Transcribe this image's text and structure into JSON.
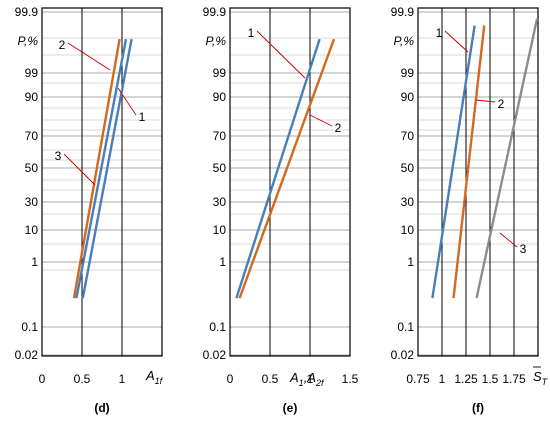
{
  "chart_data": [
    {
      "type": "line",
      "panel_label": "(d)",
      "ylabel": "P,%",
      "xlabel": "A",
      "xlabel_sub": "1f",
      "xlim": [
        0,
        1.5
      ],
      "x_ticks": [
        0,
        0.5,
        1
      ],
      "x_tick_labels": [
        "0",
        "0.5",
        "1"
      ],
      "y_ticks": [
        0.02,
        0.1,
        1,
        10,
        30,
        50,
        70,
        90,
        99,
        99.9
      ],
      "y_tick_labels": [
        "0.02",
        "0.1",
        "1",
        "10",
        "30",
        "50",
        "70",
        "90",
        "99",
        "99.9"
      ],
      "grid": true,
      "series": [
        {
          "name": "1",
          "color": "#4a7eb8",
          "x": [
            0.51,
            1.12
          ],
          "y": [
            0.5,
            99.5
          ]
        },
        {
          "name": "2",
          "color": "#d2691e",
          "x": [
            0.4,
            0.97
          ],
          "y": [
            0.5,
            99.5
          ]
        },
        {
          "name": "3",
          "color": "#4a7eb8",
          "x": [
            0.43,
            1.05
          ],
          "y": [
            0.5,
            99.5
          ]
        }
      ]
    },
    {
      "type": "line",
      "panel_label": "(e)",
      "ylabel": "P,%",
      "xlabel": "A",
      "xlabel_sub1": "1",
      "xlabel_mid": ",A",
      "xlabel_sub2": "2f",
      "xlim": [
        0,
        1.5
      ],
      "x_ticks": [
        0,
        0.5,
        1,
        1.5
      ],
      "x_tick_labels": [
        "0",
        "0.5",
        "1",
        "1.5"
      ],
      "y_ticks": [
        0.02,
        0.1,
        1,
        10,
        30,
        50,
        70,
        90,
        99,
        99.9
      ],
      "y_tick_labels": [
        "0.02",
        "0.1",
        "1",
        "10",
        "30",
        "50",
        "70",
        "90",
        "99",
        "99.9"
      ],
      "grid": true,
      "series": [
        {
          "name": "1",
          "color": "#4a7eb8",
          "x": [
            0.08,
            1.12
          ],
          "y": [
            0.5,
            99.5
          ]
        },
        {
          "name": "2",
          "color": "#d2691e",
          "x": [
            0.12,
            1.3
          ],
          "y": [
            0.5,
            99.5
          ]
        }
      ]
    },
    {
      "type": "line",
      "panel_label": "(f)",
      "ylabel": "P,%",
      "xlabel": "S",
      "xlabel_sub": "T",
      "xlim": [
        0.75,
        2
      ],
      "x_ticks": [
        0.75,
        1,
        1.25,
        1.5,
        1.75
      ],
      "x_tick_labels": [
        "0.75",
        "1",
        "1.25",
        "1.5",
        "1.75"
      ],
      "y_ticks": [
        0.02,
        0.1,
        1,
        10,
        30,
        50,
        70,
        90,
        99,
        99.9
      ],
      "y_tick_labels": [
        "0.02",
        "0.1",
        "1",
        "10",
        "30",
        "50",
        "70",
        "90",
        "99",
        "99.9"
      ],
      "grid": true,
      "series": [
        {
          "name": "1",
          "color": "#4a7eb8",
          "x": [
            0.9,
            1.34
          ],
          "y": [
            0.5,
            99.7
          ]
        },
        {
          "name": "2",
          "color": "#d2691e",
          "x": [
            1.12,
            1.44
          ],
          "y": [
            0.5,
            99.7
          ]
        },
        {
          "name": "3",
          "color": "#8c8c8c",
          "x": [
            1.36,
            1.99
          ],
          "y": [
            0.5,
            99.8
          ]
        }
      ]
    }
  ]
}
